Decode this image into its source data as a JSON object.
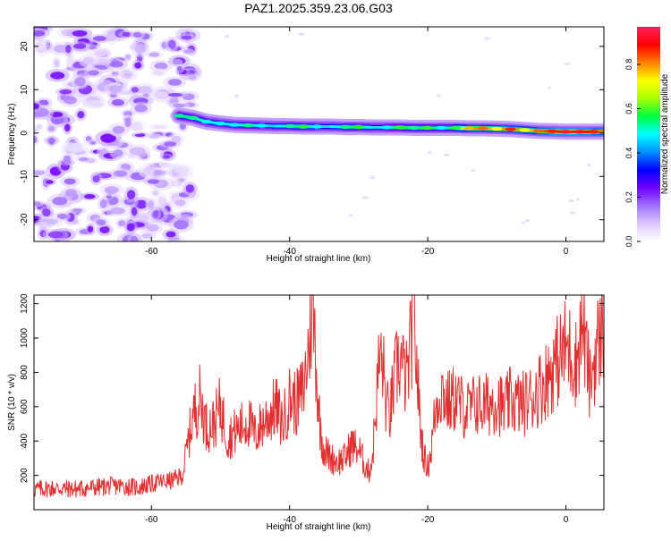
{
  "figure_title": "PAZ1.2025.359.23.06.G03",
  "chart_data": [
    {
      "type": "heatmap",
      "title": "PAZ1.2025.359.23.06.G03",
      "xlabel": "Height of straight line (km)",
      "ylabel": "Frequency (Hz)",
      "xlim": [
        -77,
        5.5
      ],
      "ylim": [
        -25,
        24.5
      ],
      "x_ticks": [
        -60,
        -40,
        -20,
        0
      ],
      "x_tick_labels": [
        "-60",
        "-40",
        "-20",
        "0"
      ],
      "y_ticks": [
        -20,
        -10,
        0,
        10,
        20
      ],
      "y_tick_labels": [
        "-20",
        "-10",
        "0",
        "10",
        "20"
      ],
      "colorbar": {
        "label": "Normalized spectral amplitude",
        "range": [
          0.0,
          0.97
        ],
        "ticks": [
          0.0,
          0.2,
          0.4,
          0.6,
          0.8
        ],
        "tick_labels": [
          "0.0",
          "0.2",
          "0.4",
          "0.6",
          "0.8"
        ],
        "colors": [
          "#ffffff",
          "#dcc8ff",
          "#a070ff",
          "#7000ff",
          "#0000ff",
          "#0090ff",
          "#00ffff",
          "#00ff40",
          "#aaff00",
          "#ffff00",
          "#ff8000",
          "#ff0000",
          "#ff2060"
        ]
      },
      "noise_region": {
        "x_range": [
          -77,
          -54
        ],
        "frequency_range_hz": [
          -25,
          24.5
        ],
        "amplitude_range": [
          0.05,
          0.25
        ]
      },
      "signal_ridge": {
        "x": [
          -56,
          -54,
          -52,
          -50,
          -48,
          -46,
          -44,
          -42,
          -40,
          -38,
          -36,
          -34,
          -32,
          -30,
          -28,
          -26,
          -24,
          -22,
          -20,
          -18,
          -16,
          -14,
          -12,
          -10,
          -8,
          -6,
          -4,
          -2,
          0,
          2,
          4,
          5.5
        ],
        "frequency_hz": [
          4,
          3.5,
          2.6,
          2.2,
          1.9,
          1.8,
          1.7,
          1.6,
          1.6,
          1.5,
          1.5,
          1.5,
          1.4,
          1.4,
          1.3,
          1.3,
          1.3,
          1.2,
          1.2,
          1.2,
          1.2,
          1.1,
          1.1,
          1.0,
          0.9,
          0.7,
          0.5,
          0.4,
          0.3,
          0.3,
          0.3,
          0.3
        ],
        "amplitude": [
          0.55,
          0.55,
          0.5,
          0.5,
          0.5,
          0.55,
          0.5,
          0.45,
          0.55,
          0.6,
          0.5,
          0.45,
          0.55,
          0.6,
          0.45,
          0.5,
          0.6,
          0.55,
          0.6,
          0.5,
          0.6,
          0.8,
          0.85,
          0.75,
          0.9,
          0.75,
          0.85,
          0.9,
          0.97,
          0.95,
          0.9,
          0.85
        ]
      }
    },
    {
      "type": "line",
      "title": "",
      "xlabel": "Height of straight line (km)",
      "ylabel": "SNR (10 * v/v)",
      "xlim": [
        -77,
        5.5
      ],
      "ylim": [
        0,
        1250
      ],
      "x_ticks": [
        -60,
        -40,
        -20,
        0
      ],
      "x_tick_labels": [
        "-60",
        "-40",
        "-20",
        "0"
      ],
      "y_ticks": [
        200,
        400,
        600,
        800,
        1000,
        1200
      ],
      "y_tick_labels": [
        "200",
        "400",
        "600",
        "800",
        "1000",
        "1200"
      ],
      "color": "#e03030",
      "series": [
        {
          "name": "SNR",
          "x": [
            -77,
            -74,
            -71,
            -68,
            -65,
            -62,
            -59,
            -57,
            -55.5,
            -55,
            -54,
            -53,
            -52,
            -51,
            -50,
            -49,
            -48,
            -47,
            -46,
            -45,
            -44,
            -43,
            -42,
            -41,
            -40,
            -39,
            -38,
            -37.5,
            -37,
            -36.7,
            -36.3,
            -36,
            -35.5,
            -35,
            -34,
            -33,
            -32,
            -31,
            -30,
            -29,
            -28.5,
            -28,
            -27.5,
            -27,
            -26.5,
            -26,
            -25.5,
            -25,
            -24.5,
            -24,
            -23.5,
            -23,
            -22.5,
            -22,
            -21.7,
            -21.3,
            -21,
            -20.5,
            -20,
            -19.5,
            -19,
            -18.5,
            -18,
            -17,
            -16,
            -15,
            -14,
            -13,
            -12,
            -11,
            -10,
            -9,
            -8,
            -7,
            -6,
            -5,
            -4,
            -3,
            -2,
            -1,
            0,
            1,
            1.5,
            2,
            2.5,
            3,
            3.5,
            4,
            4.5,
            5,
            5.5
          ],
          "y": [
            120,
            125,
            120,
            130,
            140,
            130,
            160,
            170,
            200,
            320,
            550,
            650,
            480,
            500,
            600,
            420,
            450,
            480,
            520,
            430,
            500,
            550,
            600,
            500,
            650,
            620,
            700,
            850,
            1050,
            1200,
            1000,
            700,
            450,
            350,
            300,
            280,
            300,
            380,
            350,
            250,
            220,
            300,
            600,
            880,
            850,
            600,
            550,
            700,
            820,
            880,
            800,
            750,
            950,
            1150,
            900,
            650,
            450,
            300,
            250,
            350,
            550,
            650,
            700,
            620,
            650,
            600,
            580,
            620,
            600,
            620,
            650,
            580,
            640,
            620,
            620,
            650,
            700,
            750,
            820,
            880,
            950,
            900,
            850,
            1000,
            1080,
            880,
            720,
            850,
            950,
            1020,
            1080
          ]
        }
      ]
    }
  ]
}
